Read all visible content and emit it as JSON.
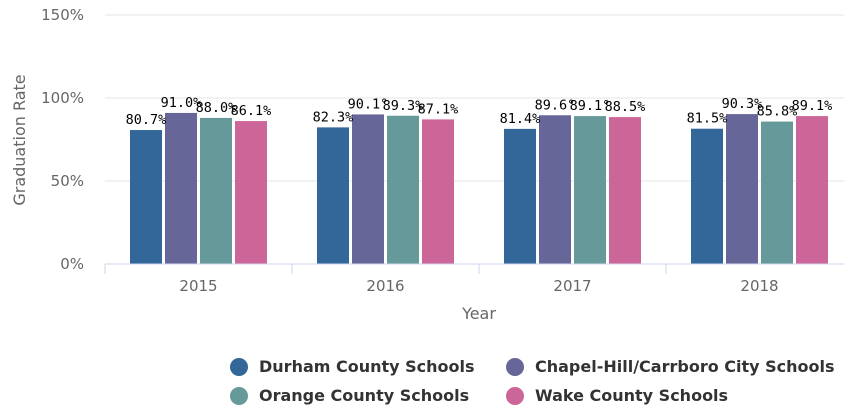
{
  "chart_data": {
    "type": "bar",
    "categories": [
      "2015",
      "2016",
      "2017",
      "2018"
    ],
    "series": [
      {
        "name": "Durham County Schools",
        "color": "#336699",
        "values": [
          80.7,
          82.3,
          81.4,
          81.5
        ]
      },
      {
        "name": "Chapel-Hill/Carrboro City Schools",
        "color": "#666699",
        "values": [
          91.0,
          90.1,
          89.6,
          90.3
        ]
      },
      {
        "name": "Orange County Schools",
        "color": "#669999",
        "values": [
          88.0,
          89.3,
          89.1,
          85.8
        ]
      },
      {
        "name": "Wake County Schools",
        "color": "#cc6699",
        "values": [
          86.1,
          87.1,
          88.5,
          89.1
        ]
      }
    ],
    "data_labels": [
      [
        "80.7%",
        "82.3%",
        "81.4%",
        "81.5%"
      ],
      [
        "91.0%",
        "90.1°",
        "89.6°",
        "90.3%"
      ],
      [
        "88.0%",
        "89.3%",
        "89.1°",
        "85.8%"
      ],
      [
        "86.1%",
        "87.1%",
        "88.5%",
        "89.1%"
      ]
    ],
    "xlabel": "Year",
    "ylabel": "Graduation Rate",
    "yticks": [
      "0%",
      "50%",
      "100%",
      "150%"
    ],
    "ytick_values": [
      0,
      50,
      100,
      150
    ],
    "ylim": [
      0,
      150
    ],
    "grid": true,
    "legend_position": "bottom"
  }
}
